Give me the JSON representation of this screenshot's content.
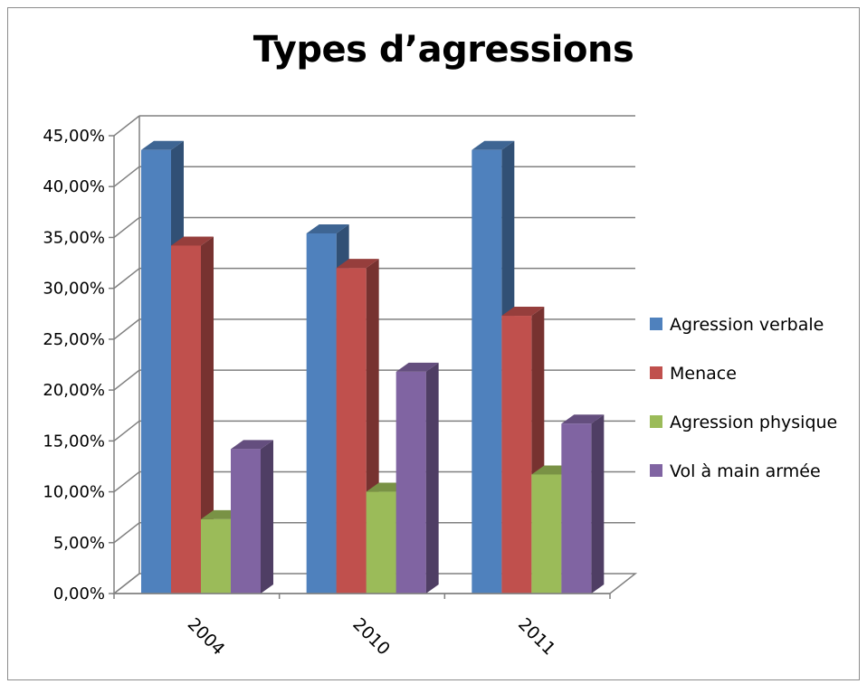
{
  "chart_data": {
    "type": "bar",
    "title": "Types d’agressions",
    "categories": [
      "2004",
      "2010",
      "2011"
    ],
    "series": [
      {
        "name": "Agression verbale",
        "values": [
          43.6,
          35.4,
          43.6
        ],
        "color": "#4f81bd"
      },
      {
        "name": "Menace",
        "values": [
          34.2,
          32.0,
          27.3
        ],
        "color": "#c0504d"
      },
      {
        "name": "Agression physique",
        "values": [
          7.3,
          10.0,
          11.7
        ],
        "color": "#9bbb59"
      },
      {
        "name": "Vol à main armée",
        "values": [
          14.2,
          21.8,
          16.7
        ],
        "color": "#8064a2"
      }
    ],
    "ylim": [
      0,
      45
    ],
    "y_ticks": [
      "0,00%",
      "5,00%",
      "10,00%",
      "15,00%",
      "20,00%",
      "25,00%",
      "30,00%",
      "35,00%",
      "40,00%",
      "45,00%"
    ],
    "grid": true,
    "legend_position": "right",
    "style": "3d-clustered-column"
  }
}
